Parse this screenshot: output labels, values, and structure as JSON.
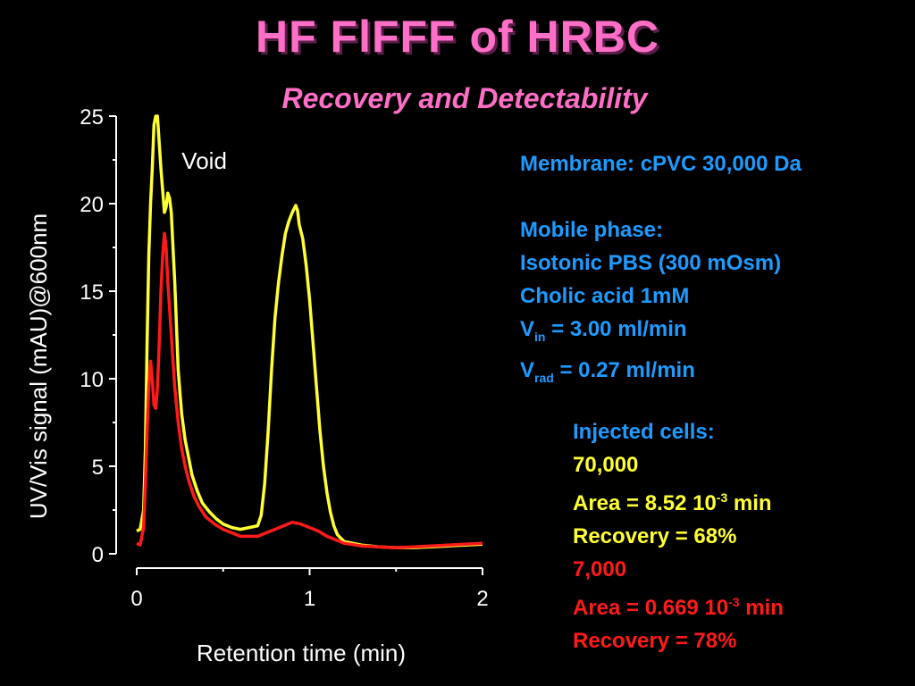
{
  "title": "HF FlFFF of HRBC",
  "subtitle": "Recovery and Detectability",
  "conditions": {
    "membrane": "Membrane: cPVC 30,000 Da",
    "mobile_phase_heading": "Mobile phase:",
    "buffer": "Isotonic PBS (300 mOsm)",
    "additive": "Cholic acid 1mM",
    "v_in_symbol": "V",
    "v_in_sub": "in",
    "v_in_value": " = 3.00 ml/min",
    "v_rad_symbol": "V",
    "v_rad_sub": "rad",
    "v_rad_value": " = 0.27 ml/min"
  },
  "injected": {
    "heading": "Injected cells:",
    "high": {
      "cells": "70,000",
      "area_prefix": "Area = 8.52 10",
      "area_exp": "-3",
      "area_suffix": " min",
      "recovery": "Recovery = 68%"
    },
    "low": {
      "cells": "7,000",
      "area_prefix": "Area = 0.669 10",
      "area_exp": "-3",
      "area_suffix": " min",
      "recovery": "Recovery = 78%"
    }
  },
  "chart_data": {
    "type": "line",
    "xlabel": "Retention time (min)",
    "ylabel": "UV/Vis signal (mAU)@600nm",
    "xlim": [
      0,
      2
    ],
    "ylim": [
      0,
      25
    ],
    "x_ticks": [
      "0",
      "1",
      "2"
    ],
    "y_ticks": [
      "0",
      "5",
      "10",
      "15",
      "20",
      "25"
    ],
    "grid": false,
    "annotations": [
      {
        "text": "Void",
        "x": 0.26,
        "y": 22
      }
    ],
    "series": [
      {
        "color": "#ffff33",
        "x": [
          0.0,
          0.02,
          0.04,
          0.05,
          0.06,
          0.07,
          0.08,
          0.09,
          0.1,
          0.11,
          0.12,
          0.14,
          0.16,
          0.17,
          0.18,
          0.19,
          0.2,
          0.21,
          0.22,
          0.23,
          0.24,
          0.26,
          0.28,
          0.3,
          0.32,
          0.35,
          0.38,
          0.42,
          0.46,
          0.5,
          0.55,
          0.6,
          0.65,
          0.7,
          0.72,
          0.74,
          0.76,
          0.78,
          0.8,
          0.82,
          0.84,
          0.86,
          0.88,
          0.9,
          0.92,
          0.93,
          0.94,
          0.96,
          0.98,
          1.0,
          1.02,
          1.04,
          1.06,
          1.08,
          1.1,
          1.12,
          1.14,
          1.16,
          1.18,
          1.2,
          1.25,
          1.3,
          1.4,
          1.5,
          1.6,
          1.7,
          1.8,
          1.9,
          2.0
        ],
        "y": [
          1.3,
          1.4,
          2.5,
          6.0,
          12.0,
          17.0,
          20.0,
          22.0,
          24.5,
          25.0,
          25.0,
          22.0,
          19.5,
          19.8,
          20.6,
          20.3,
          19.5,
          17.5,
          15.5,
          13.0,
          10.5,
          8.0,
          6.5,
          5.5,
          4.5,
          3.6,
          2.9,
          2.4,
          2.0,
          1.7,
          1.5,
          1.4,
          1.5,
          1.6,
          2.2,
          4.0,
          7.0,
          10.5,
          13.5,
          15.5,
          17.0,
          18.3,
          19.0,
          19.5,
          19.9,
          19.6,
          18.8,
          18.0,
          16.5,
          14.5,
          12.0,
          9.5,
          7.0,
          5.0,
          3.5,
          2.4,
          1.6,
          1.1,
          0.9,
          0.7,
          0.6,
          0.5,
          0.4,
          0.35,
          0.35,
          0.4,
          0.45,
          0.5,
          0.55
        ]
      },
      {
        "color": "#ff1a1a",
        "x": [
          0.0,
          0.02,
          0.04,
          0.05,
          0.06,
          0.07,
          0.08,
          0.09,
          0.1,
          0.11,
          0.12,
          0.13,
          0.14,
          0.15,
          0.16,
          0.17,
          0.18,
          0.19,
          0.2,
          0.21,
          0.22,
          0.24,
          0.26,
          0.28,
          0.3,
          0.33,
          0.36,
          0.4,
          0.45,
          0.5,
          0.55,
          0.6,
          0.7,
          0.8,
          0.85,
          0.9,
          0.95,
          1.0,
          1.05,
          1.1,
          1.15,
          1.2,
          1.3,
          1.4,
          1.5,
          1.6,
          1.7,
          1.8,
          1.9,
          2.0
        ],
        "y": [
          0.6,
          0.5,
          1.5,
          4.0,
          7.0,
          9.5,
          11.0,
          10.0,
          8.5,
          8.3,
          9.5,
          12.0,
          15.0,
          17.0,
          18.3,
          17.5,
          15.5,
          14.0,
          12.5,
          11.0,
          9.5,
          7.5,
          6.0,
          5.0,
          4.2,
          3.3,
          2.7,
          2.1,
          1.7,
          1.4,
          1.2,
          1.0,
          1.0,
          1.4,
          1.6,
          1.8,
          1.7,
          1.5,
          1.3,
          1.0,
          0.8,
          0.6,
          0.45,
          0.4,
          0.35,
          0.4,
          0.45,
          0.5,
          0.55,
          0.6
        ]
      }
    ]
  }
}
